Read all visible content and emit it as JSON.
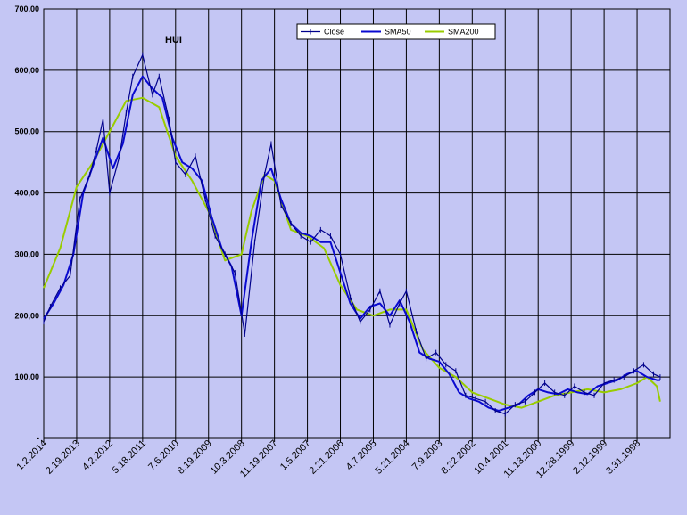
{
  "chart_data": {
    "type": "line",
    "title": "HUI",
    "xlabel": "",
    "ylabel": "",
    "x_axis_order": "descending-dates",
    "ylim": [
      0,
      700
    ],
    "y_ticks": [
      {
        "value": 0,
        "label": "-"
      },
      {
        "value": 100,
        "label": "100,00"
      },
      {
        "value": 200,
        "label": "200,00"
      },
      {
        "value": 300,
        "label": "300,00"
      },
      {
        "value": 400,
        "label": "400,00"
      },
      {
        "value": 500,
        "label": "500,00"
      },
      {
        "value": 600,
        "label": "600,00"
      },
      {
        "value": 700,
        "label": "700,00"
      }
    ],
    "x_ticks": [
      "1.2.2014",
      "2.19.2013",
      "4.2.2012",
      "5.18.2011",
      "7.6.2010",
      "8.19.2009",
      "10.3.2008",
      "11.19.2007",
      "1.5.2007",
      "2.21.2006",
      "4.7.2005",
      "5.21.2004",
      "7.9.2003",
      "8.22.2002",
      "10.4.2001",
      "11.13.2000",
      "12.28.1999",
      "2.12.1999",
      "3.31.1998"
    ],
    "grid": true,
    "legend": {
      "placement": "top-center",
      "entries": [
        "Close",
        "SMA50",
        "SMA200"
      ]
    },
    "colors": {
      "close": "#00008b",
      "sma50": "#0a0ad0",
      "sma200": "#99cc00",
      "plot_bg": "#c4c6f4",
      "grid": "#000000"
    },
    "series": [
      {
        "name": "Close",
        "x": [
          0,
          0.2,
          0.5,
          0.8,
          1.1,
          1.4,
          1.6,
          1.8,
          2.0,
          2.3,
          2.5,
          2.7,
          3.0,
          3.3,
          3.5,
          3.8,
          4.0,
          4.3,
          4.6,
          4.9,
          5.2,
          5.5,
          5.8,
          6.1,
          6.4,
          6.7,
          6.9,
          7.2,
          7.5,
          7.8,
          8.1,
          8.4,
          8.7,
          9.0,
          9.3,
          9.6,
          9.9,
          10.2,
          10.5,
          10.8,
          11.0,
          11.3,
          11.6,
          11.9,
          12.2,
          12.5,
          12.8,
          13.1,
          13.4,
          13.7,
          14.0,
          14.3,
          14.6,
          14.9,
          15.2,
          15.5,
          15.8,
          16.1,
          16.4,
          16.7,
          17.0,
          17.3,
          17.6,
          17.9,
          18.2,
          18.5,
          18.7
        ],
        "values": [
          190,
          215,
          245,
          265,
          390,
          430,
          470,
          520,
          400,
          460,
          530,
          590,
          625,
          560,
          590,
          520,
          450,
          430,
          460,
          390,
          330,
          300,
          270,
          170,
          320,
          430,
          480,
          380,
          350,
          330,
          320,
          340,
          330,
          300,
          230,
          190,
          210,
          240,
          185,
          220,
          240,
          175,
          130,
          140,
          120,
          110,
          70,
          65,
          60,
          45,
          40,
          55,
          60,
          75,
          90,
          75,
          70,
          85,
          75,
          70,
          90,
          95,
          100,
          110,
          120,
          105,
          100
        ]
      },
      {
        "name": "SMA50",
        "x": [
          0,
          0.3,
          0.6,
          0.9,
          1.2,
          1.5,
          1.8,
          2.1,
          2.4,
          2.7,
          3.0,
          3.3,
          3.6,
          3.9,
          4.2,
          4.5,
          4.8,
          5.1,
          5.4,
          5.7,
          6.0,
          6.3,
          6.6,
          6.9,
          7.2,
          7.5,
          7.8,
          8.1,
          8.4,
          8.7,
          9.0,
          9.3,
          9.6,
          9.9,
          10.2,
          10.5,
          10.8,
          11.1,
          11.4,
          11.7,
          12.0,
          12.3,
          12.6,
          12.9,
          13.2,
          13.5,
          13.8,
          14.1,
          14.4,
          14.7,
          15.0,
          15.3,
          15.6,
          15.9,
          16.2,
          16.5,
          16.8,
          17.1,
          17.4,
          17.7,
          18.0,
          18.3,
          18.6,
          18.7
        ],
        "values": [
          195,
          220,
          250,
          300,
          400,
          445,
          490,
          440,
          480,
          560,
          590,
          570,
          555,
          490,
          450,
          440,
          420,
          360,
          310,
          280,
          200,
          320,
          420,
          440,
          390,
          350,
          335,
          330,
          320,
          320,
          270,
          220,
          195,
          215,
          220,
          200,
          225,
          190,
          140,
          130,
          125,
          105,
          75,
          65,
          60,
          50,
          45,
          50,
          55,
          70,
          80,
          75,
          72,
          80,
          75,
          72,
          85,
          90,
          95,
          105,
          110,
          100,
          95,
          95
        ]
      },
      {
        "name": "SMA200",
        "x": [
          0,
          0.5,
          1.0,
          1.5,
          2.0,
          2.5,
          3.0,
          3.5,
          4.0,
          4.5,
          5.0,
          5.5,
          6.0,
          6.3,
          6.7,
          7.0,
          7.5,
          8.0,
          8.5,
          9.0,
          9.5,
          10.0,
          10.5,
          11.0,
          11.5,
          12.0,
          12.5,
          13.0,
          13.5,
          14.0,
          14.5,
          15.0,
          15.5,
          16.0,
          16.5,
          17.0,
          17.5,
          18.0,
          18.3,
          18.6,
          18.7
        ],
        "values": [
          245,
          310,
          410,
          450,
          500,
          550,
          555,
          540,
          460,
          420,
          370,
          290,
          300,
          370,
          430,
          420,
          340,
          330,
          310,
          250,
          210,
          200,
          210,
          210,
          145,
          115,
          100,
          75,
          65,
          55,
          50,
          60,
          70,
          75,
          80,
          75,
          80,
          90,
          100,
          85,
          60
        ]
      }
    ]
  }
}
